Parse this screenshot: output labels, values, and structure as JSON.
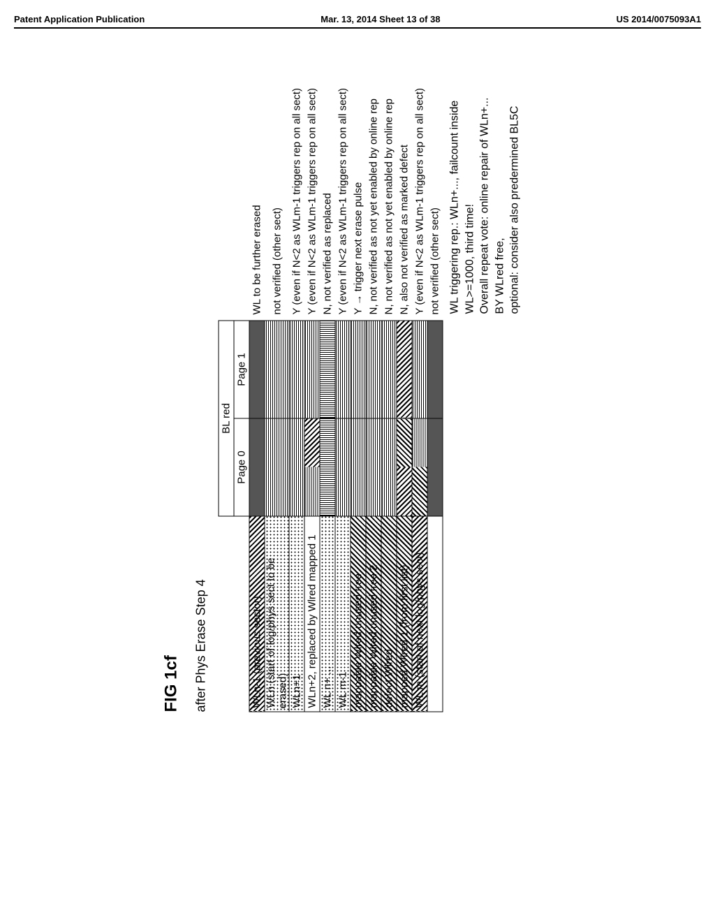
{
  "header": {
    "left": "Patent Application Publication",
    "center": "Mar. 13, 2014  Sheet 13 of 38",
    "right": "US 2014/0075093A1"
  },
  "figure": {
    "label": "FIG 1cf",
    "subtitle": "after Phys Erase Step 4",
    "col_headers": {
      "blred": "BL red",
      "page0": "Page 0",
      "page1": "Page 1"
    },
    "rows": [
      {
        "label": "WLn-1 (previous sector)",
        "label_fill": "diag",
        "cells": [
          "solid",
          "solid"
        ],
        "anno": "WL to be further erased"
      },
      {
        "label": "WLn (start of log/phys sect to be erased)",
        "label_fill": "dots",
        "cells": [
          "hstripe",
          "hstripe"
        ],
        "anno": "not verified (other sect)"
      },
      {
        "label": "WLn+1",
        "label_fill": "dots",
        "cells": [
          "hstripe",
          "hstripe"
        ],
        "anno": "Y (even if N<2 as WLm-1 triggers rep on all sect)"
      },
      {
        "label": "WLn+2, replaced by Wlred mapped 1",
        "label_fill": "",
        "cells": [
          "hstripe_mixed",
          "hstripe"
        ],
        "anno": "Y (even if N<2 as WLm-1 triggers rep on all sect)"
      },
      {
        "label": "WL n+ ...",
        "label_fill": "dots",
        "cells": [
          "vtight",
          "vtight"
        ],
        "anno": "N, not verified as replaced"
      },
      {
        "label": "WL m-1",
        "label_fill": "dots",
        "cells": [
          "hstripe",
          "hstripe"
        ],
        "anno": "Y (even if N<2 as WLm-1 triggers rep on all sect)"
      },
      {
        "label": "mappable Wlred unused free",
        "label_fill": "diag2",
        "cells": [
          "hstripe",
          "hstripe"
        ],
        "anno": "Y → trigger next erase pulse"
      },
      {
        "label": "mappable Wlred unused free 2",
        "label_fill": "diag2",
        "cells": [
          "hstripe",
          "hstripe"
        ],
        "anno": "N, not verified as not yet enabled by online rep"
      },
      {
        "label": "defect Wlred",
        "label_fill": "diag2",
        "cells": [
          "hstripe",
          "hstripe"
        ],
        "anno": "N, not verified as not yet enabled by online rep"
      },
      {
        "label": "mapped Wlred 1 (from first list)",
        "label_fill": "diag2",
        "cells": [
          "diag_mixed",
          "diag"
        ],
        "anno": "N, also not verified as marked defect"
      },
      {
        "label": "WL m (start of next log/phys sect)",
        "label_fill": "diag",
        "cells": [
          "diag_split",
          "hstripe"
        ],
        "anno": "Y (even if N<2 as WLm-1 triggers rep on all sect)"
      },
      {
        "label": "",
        "label_fill": "",
        "cells": [
          "solid",
          "solid"
        ],
        "anno": "not verified (other sect)"
      }
    ],
    "footer": [
      "WL triggering rep.: WLn+..., failcount inside",
      "WL>=1000, third time!",
      "Overall repeat vote: online repair of WLn+...",
      "BY WLred free,",
      "optional: consider also predermined BL5C"
    ]
  }
}
